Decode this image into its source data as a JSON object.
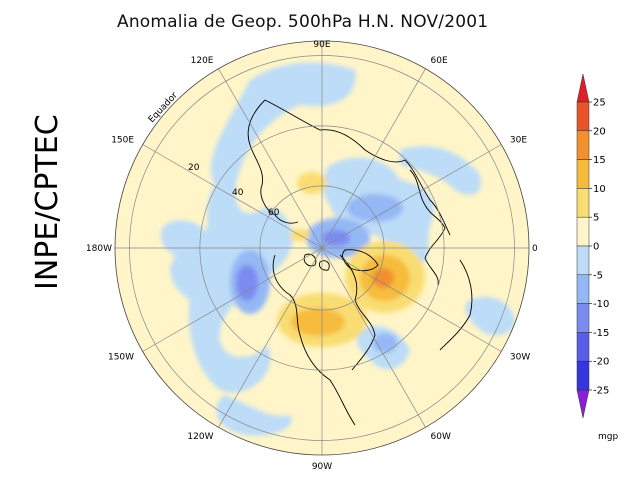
{
  "title": "Anomalia de Geop. 500hPa H.N. NOV/2001",
  "agency": "INPE/CPTEC",
  "longitude_labels": [
    {
      "text": "90E",
      "deg": 90
    },
    {
      "text": "60E",
      "deg": 60
    },
    {
      "text": "30E",
      "deg": 30
    },
    {
      "text": "0",
      "deg": 0
    },
    {
      "text": "30W",
      "deg": -30
    },
    {
      "text": "60W",
      "deg": -60
    },
    {
      "text": "90W",
      "deg": -90
    },
    {
      "text": "120W",
      "deg": -120
    },
    {
      "text": "150W",
      "deg": -150
    },
    {
      "text": "180W",
      "deg": 180
    },
    {
      "text": "150E",
      "deg": 150
    },
    {
      "text": "120E",
      "deg": 120
    }
  ],
  "latitude_labels": [
    "20",
    "40",
    "60"
  ],
  "equator_label": "Equador",
  "colorbar": {
    "ticks": [
      "25",
      "20",
      "15",
      "10",
      "5",
      "0",
      "-5",
      "-10",
      "-15",
      "-20",
      "-25"
    ],
    "colors": [
      "#e8542a",
      "#f38f2e",
      "#f7bb3c",
      "#f9dd72",
      "#fff5c8",
      "#bcdcf8",
      "#94b8f5",
      "#7b8bf0",
      "#5b5ce8",
      "#3436de"
    ],
    "top_arrow_color": "#e21f26",
    "bottom_arrow_color": "#8b1fd8",
    "unit": "mgp"
  },
  "colors": {
    "background_field": "#fff5c8",
    "negative_weak": "#bcdcf8",
    "negative_mid": "#94b8f5",
    "negative_strong": "#7b8bf0",
    "positive_weak": "#f9dd72",
    "positive_mid": "#f7bb3c",
    "positive_strong": "#f38f2e"
  }
}
